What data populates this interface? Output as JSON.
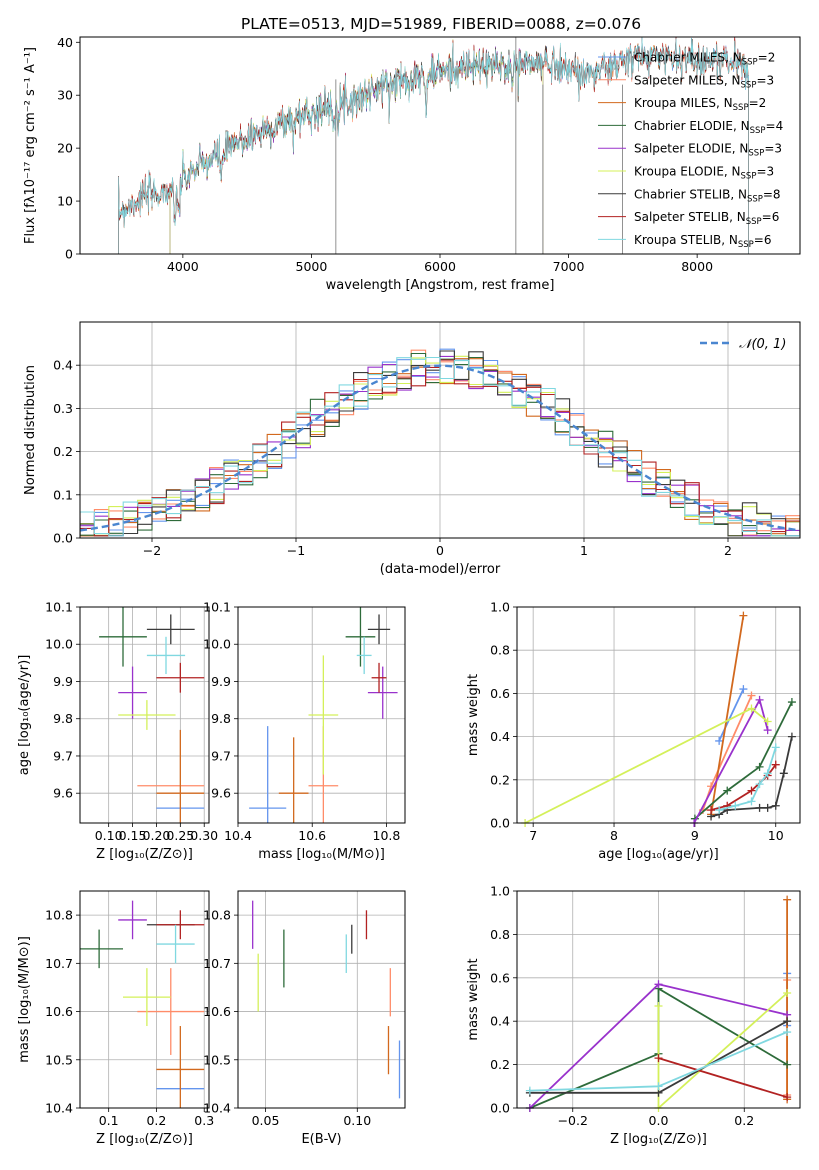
{
  "figure_title": "PLATE=0513, MJD=51989, FIBERID=0088, z=0.076",
  "colors": {
    "Chabrier MILES": "#6495ED",
    "Salpeter MILES": "#FF8C69",
    "Kroupa MILES": "#D2691E",
    "Chabrier ELODIE": "#2E6B3A",
    "Salpeter ELODIE": "#9932CC",
    "Kroupa ELODIE": "#D4F05A",
    "Chabrier STELIB": "#3A3A3A",
    "Salpeter STELIB": "#B22222",
    "Kroupa STELIB": "#80D8E0"
  },
  "chart_data": [
    {
      "id": "spectrum",
      "type": "line",
      "title": "PLATE=0513, MJD=51989, FIBERID=0088, z=0.076",
      "xlabel": "wavelength [Angstrom, rest frame]",
      "ylabel": "Flux [fλ10⁻¹⁷ erg cm⁻² s⁻¹ A⁻¹]",
      "xlim": [
        3200,
        8800
      ],
      "ylim": [
        0,
        41
      ],
      "xticks": [
        4000,
        5000,
        6000,
        7000,
        8000
      ],
      "yticks": [
        0,
        10,
        20,
        30,
        40
      ],
      "continuum": {
        "x": [
          3500,
          3700,
          3900,
          4100,
          4300,
          4500,
          4700,
          4900,
          5100,
          5300,
          5500,
          5700,
          5900,
          6100,
          6300,
          6500,
          6700,
          6900,
          7100,
          7300,
          7500,
          7700,
          7900,
          8100,
          8300,
          8500
        ],
        "y": [
          8,
          11,
          12,
          16,
          19,
          22,
          24,
          26,
          27.5,
          29,
          31,
          33,
          34,
          35,
          35.5,
          35.5,
          36,
          36,
          34,
          35,
          37,
          37.5,
          37,
          36.5,
          36.5,
          33
        ]
      },
      "series": [
        {
          "name": "Chabrier MILES",
          "nssp": "2",
          "xrange": [
            3500,
            8400
          ]
        },
        {
          "name": "Salpeter MILES",
          "nssp": "3",
          "xrange": [
            3500,
            8400
          ]
        },
        {
          "name": "Kroupa MILES",
          "nssp": "2",
          "xrange": [
            3500,
            8400
          ]
        },
        {
          "name": "Chabrier ELODIE",
          "nssp": "4",
          "xrange": [
            3900,
            6800
          ]
        },
        {
          "name": "Salpeter ELODIE",
          "nssp": "3",
          "xrange": [
            3900,
            6800
          ]
        },
        {
          "name": "Kroupa ELODIE",
          "nssp": "3",
          "xrange": [
            3900,
            6800
          ]
        },
        {
          "name": "Chabrier STELIB",
          "nssp": "8",
          "xrange": [
            3500,
            8400
          ]
        },
        {
          "name": "Salpeter STELIB",
          "nssp": "6",
          "xrange": [
            3500,
            8400
          ]
        },
        {
          "name": "Kroupa STELIB",
          "nssp": "6",
          "xrange": [
            3500,
            8400
          ]
        }
      ],
      "legend": "upper-right"
    },
    {
      "id": "residuals",
      "type": "line",
      "xlabel": "(data-model)/error",
      "ylabel": "Normed distribution",
      "xlim": [
        -2.5,
        2.5
      ],
      "ylim": [
        0,
        0.5
      ],
      "xticks": [
        -2,
        -1,
        0,
        1,
        2
      ],
      "yticks": [
        0.0,
        0.1,
        0.2,
        0.3,
        0.4
      ],
      "grid": true,
      "reference": {
        "name": "𝒩(0, 1)",
        "mean": 0,
        "sigma": 1
      },
      "bin_width": 0.1,
      "legend": "upper-right"
    },
    {
      "id": "age_vs_Z",
      "type": "scatter",
      "xlabel": "Z [log₁₀(Z/Z⊙)]",
      "ylabel": "age  [log₁₀(age/yr)]",
      "xlim": [
        0.04,
        0.31
      ],
      "ylim": [
        9.52,
        10.1
      ],
      "xticks": [
        0.1,
        0.15,
        0.2,
        0.25,
        0.3
      ],
      "yticks": [
        9.6,
        9.7,
        9.8,
        9.9,
        10.0,
        10.1
      ],
      "grid": true,
      "points": [
        {
          "series": "Chabrier MILES",
          "x": 0.25,
          "xerr": 0.05,
          "y": 9.56,
          "yerr": 0.0
        },
        {
          "series": "Salpeter MILES",
          "x": 0.23,
          "xerr": 0.07,
          "y": 9.62,
          "yerr": 0.0
        },
        {
          "series": "Kroupa MILES",
          "x": 0.25,
          "xerr": 0.05,
          "y": 9.6,
          "yerr": 0.17
        },
        {
          "series": "Chabrier ELODIE",
          "x": 0.13,
          "xerr": 0.05,
          "y": 10.02,
          "yerr": 0.08
        },
        {
          "series": "Salpeter ELODIE",
          "x": 0.15,
          "xerr": 0.03,
          "y": 9.87,
          "yerr": 0.07
        },
        {
          "series": "Kroupa ELODIE",
          "x": 0.18,
          "xerr": 0.06,
          "y": 9.81,
          "yerr": 0.04
        },
        {
          "series": "Chabrier STELIB",
          "x": 0.23,
          "xerr": 0.05,
          "y": 10.04,
          "yerr": 0.04
        },
        {
          "series": "Salpeter STELIB",
          "x": 0.25,
          "xerr": 0.05,
          "y": 9.91,
          "yerr": 0.04
        },
        {
          "series": "Kroupa STELIB",
          "x": 0.22,
          "xerr": 0.04,
          "y": 9.97,
          "yerr": 0.05
        }
      ]
    },
    {
      "id": "age_vs_mass",
      "type": "scatter",
      "xlabel": "mass [log₁₀(M/M⊙)]",
      "ylabel": "",
      "xlim": [
        10.4,
        10.85
      ],
      "ylim": [
        9.52,
        10.1
      ],
      "xticks": [
        10.4,
        10.6,
        10.8
      ],
      "yticks": [
        9.6,
        9.7,
        9.8,
        9.9,
        10.0,
        10.1
      ],
      "grid": true,
      "points": [
        {
          "series": "Chabrier MILES",
          "x": 10.48,
          "xerr": 0.05,
          "y": 9.56,
          "yerr": 0.22
        },
        {
          "series": "Salpeter MILES",
          "x": 10.63,
          "xerr": 0.04,
          "y": 9.62,
          "yerr": 0.16
        },
        {
          "series": "Kroupa MILES",
          "x": 10.55,
          "xerr": 0.04,
          "y": 9.6,
          "yerr": 0.15
        },
        {
          "series": "Chabrier ELODIE",
          "x": 10.73,
          "xerr": 0.04,
          "y": 10.02,
          "yerr": 0.08
        },
        {
          "series": "Salpeter ELODIE",
          "x": 10.79,
          "xerr": 0.04,
          "y": 9.87,
          "yerr": 0.07
        },
        {
          "series": "Kroupa ELODIE",
          "x": 10.63,
          "xerr": 0.04,
          "y": 9.81,
          "yerr": 0.16
        },
        {
          "series": "Chabrier STELIB",
          "x": 10.78,
          "xerr": 0.03,
          "y": 10.04,
          "yerr": 0.04
        },
        {
          "series": "Salpeter STELIB",
          "x": 10.78,
          "xerr": 0.02,
          "y": 9.91,
          "yerr": 0.04
        },
        {
          "series": "Kroupa STELIB",
          "x": 10.74,
          "xerr": 0.02,
          "y": 9.97,
          "yerr": 0.05
        }
      ]
    },
    {
      "id": "weight_vs_age",
      "type": "line",
      "xlabel": "age  [log₁₀(age/yr)]",
      "ylabel": "mass weight",
      "xlim": [
        6.8,
        10.3
      ],
      "ylim": [
        0,
        1
      ],
      "xticks": [
        7,
        8,
        9,
        10
      ],
      "yticks": [
        0.0,
        0.2,
        0.4,
        0.6,
        0.8,
        1.0
      ],
      "grid": true,
      "series": [
        {
          "name": "Chabrier MILES",
          "x": [
            9.3,
            9.6
          ],
          "y": [
            0.38,
            0.62
          ]
        },
        {
          "name": "Salpeter MILES",
          "x": [
            9.1,
            9.2,
            9.7
          ],
          "y": [
            0.06,
            0.17,
            0.59
          ]
        },
        {
          "name": "Kroupa MILES",
          "x": [
            9.2,
            9.6
          ],
          "y": [
            0.04,
            0.96
          ]
        },
        {
          "name": "Chabrier ELODIE",
          "x": [
            9.0,
            9.4,
            9.8,
            10.2
          ],
          "y": [
            0.02,
            0.15,
            0.26,
            0.56
          ]
        },
        {
          "name": "Salpeter ELODIE",
          "x": [
            8.99,
            9.8,
            9.9
          ],
          "y": [
            0.0,
            0.57,
            0.43
          ]
        },
        {
          "name": "Kroupa ELODIE",
          "x": [
            6.9,
            9.7,
            9.9
          ],
          "y": [
            0.0,
            0.53,
            0.47
          ]
        },
        {
          "name": "Chabrier STELIB",
          "x": [
            9.2,
            9.3,
            9.4,
            9.8,
            9.9,
            10.0,
            10.1,
            10.2
          ],
          "y": [
            0.03,
            0.04,
            0.06,
            0.07,
            0.07,
            0.08,
            0.23,
            0.4
          ]
        },
        {
          "name": "Salpeter STELIB",
          "x": [
            9.2,
            9.4,
            9.7,
            9.9,
            10.0
          ],
          "y": [
            0.06,
            0.08,
            0.15,
            0.22,
            0.27
          ]
        },
        {
          "name": "Kroupa STELIB",
          "x": [
            9.3,
            9.5,
            9.7,
            9.8,
            9.9,
            10.0
          ],
          "y": [
            0.06,
            0.08,
            0.1,
            0.18,
            0.23,
            0.35
          ]
        }
      ]
    },
    {
      "id": "mass_vs_Z",
      "type": "scatter",
      "xlabel": "Z [log₁₀(Z/Z⊙)]",
      "ylabel": "mass [log₁₀(M/M⊙)]",
      "xlim": [
        0.04,
        0.31
      ],
      "ylim": [
        10.4,
        10.85
      ],
      "xticks": [
        0.1,
        0.2,
        0.3
      ],
      "yticks": [
        10.4,
        10.5,
        10.6,
        10.7,
        10.8
      ],
      "grid": true,
      "points": [
        {
          "series": "Chabrier MILES",
          "x": 0.25,
          "xerr": 0.05,
          "y": 10.44,
          "yerr": 0.0
        },
        {
          "series": "Salpeter MILES",
          "x": 0.23,
          "xerr": 0.07,
          "y": 10.6,
          "yerr": 0.09
        },
        {
          "series": "Kroupa MILES",
          "x": 0.25,
          "xerr": 0.05,
          "y": 10.48,
          "yerr": 0.09
        },
        {
          "series": "Chabrier ELODIE",
          "x": 0.08,
          "xerr": 0.05,
          "y": 10.73,
          "yerr": 0.04
        },
        {
          "series": "Salpeter ELODIE",
          "x": 0.15,
          "xerr": 0.03,
          "y": 10.79,
          "yerr": 0.04
        },
        {
          "series": "Kroupa ELODIE",
          "x": 0.18,
          "xerr": 0.05,
          "y": 10.63,
          "yerr": 0.06
        },
        {
          "series": "Chabrier STELIB",
          "x": 0.23,
          "xerr": 0.05,
          "y": 10.78,
          "yerr": 0.0
        },
        {
          "series": "Salpeter STELIB",
          "x": 0.25,
          "xerr": 0.05,
          "y": 10.78,
          "yerr": 0.03
        },
        {
          "series": "Kroupa STELIB",
          "x": 0.24,
          "xerr": 0.04,
          "y": 10.74,
          "yerr": 0.04
        }
      ]
    },
    {
      "id": "mass_vs_ebv",
      "type": "scatter",
      "xlabel": "E(B-V)",
      "ylabel": "",
      "xlim": [
        0.035,
        0.126
      ],
      "ylim": [
        10.4,
        10.85
      ],
      "xticks": [
        0.05,
        0.1
      ],
      "yticks": [
        10.4,
        10.5,
        10.6,
        10.7,
        10.8
      ],
      "grid": true,
      "points": [
        {
          "series": "Chabrier MILES",
          "x": 0.123,
          "xerr": 0.0,
          "y": 10.48,
          "yerr": 0.06
        },
        {
          "series": "Salpeter MILES",
          "x": 0.118,
          "xerr": 0.0,
          "y": 10.64,
          "yerr": 0.05
        },
        {
          "series": "Kroupa MILES",
          "x": 0.117,
          "xerr": 0.0,
          "y": 10.52,
          "yerr": 0.05
        },
        {
          "series": "Chabrier ELODIE",
          "x": 0.06,
          "xerr": 0.0,
          "y": 10.71,
          "yerr": 0.06
        },
        {
          "series": "Salpeter ELODIE",
          "x": 0.043,
          "xerr": 0.0,
          "y": 10.78,
          "yerr": 0.05
        },
        {
          "series": "Kroupa ELODIE",
          "x": 0.046,
          "xerr": 0.0,
          "y": 10.66,
          "yerr": 0.06
        },
        {
          "series": "Chabrier STELIB",
          "x": 0.097,
          "xerr": 0.0,
          "y": 10.75,
          "yerr": 0.03
        },
        {
          "series": "Salpeter STELIB",
          "x": 0.105,
          "xerr": 0.0,
          "y": 10.78,
          "yerr": 0.03
        },
        {
          "series": "Kroupa STELIB",
          "x": 0.094,
          "xerr": 0.0,
          "y": 10.72,
          "yerr": 0.04
        }
      ]
    },
    {
      "id": "weight_vs_Z",
      "type": "line",
      "xlabel": "Z [log₁₀(Z/Z⊙)]",
      "ylabel": "mass weight",
      "xlim": [
        -0.33,
        0.33
      ],
      "ylim": [
        0,
        1
      ],
      "xticks": [
        -0.2,
        0.0,
        0.2
      ],
      "yticks": [
        0.0,
        0.2,
        0.4,
        0.6,
        0.8,
        1.0
      ],
      "grid": true,
      "series": [
        {
          "name": "Chabrier MILES",
          "x": [
            0.3,
            0.3
          ],
          "y": [
            0.38,
            0.62
          ]
        },
        {
          "name": "Salpeter MILES",
          "x": [
            0.3,
            0.3
          ],
          "y": [
            0.06,
            0.59
          ]
        },
        {
          "name": "Kroupa MILES",
          "x": [
            0.3,
            0.3
          ],
          "y": [
            0.04,
            0.96
          ]
        },
        {
          "name": "Chabrier ELODIE",
          "x": [
            -0.3,
            0.0,
            0.0,
            0.3
          ],
          "y": [
            0.0,
            0.25,
            0.55,
            0.2
          ]
        },
        {
          "name": "Salpeter ELODIE",
          "x": [
            -0.3,
            0.0,
            0.3
          ],
          "y": [
            0.0,
            0.57,
            0.43
          ]
        },
        {
          "name": "Kroupa ELODIE",
          "x": [
            0.0,
            0.0,
            0.3
          ],
          "y": [
            0.47,
            0.0,
            0.53
          ]
        },
        {
          "name": "Chabrier STELIB",
          "x": [
            -0.3,
            0.0,
            0.3
          ],
          "y": [
            0.07,
            0.07,
            0.4
          ]
        },
        {
          "name": "Salpeter STELIB",
          "x": [
            0.0,
            0.3
          ],
          "y": [
            0.23,
            0.05
          ]
        },
        {
          "name": "Kroupa STELIB",
          "x": [
            -0.3,
            0.0,
            0.3
          ],
          "y": [
            0.08,
            0.1,
            0.35
          ]
        }
      ]
    }
  ]
}
